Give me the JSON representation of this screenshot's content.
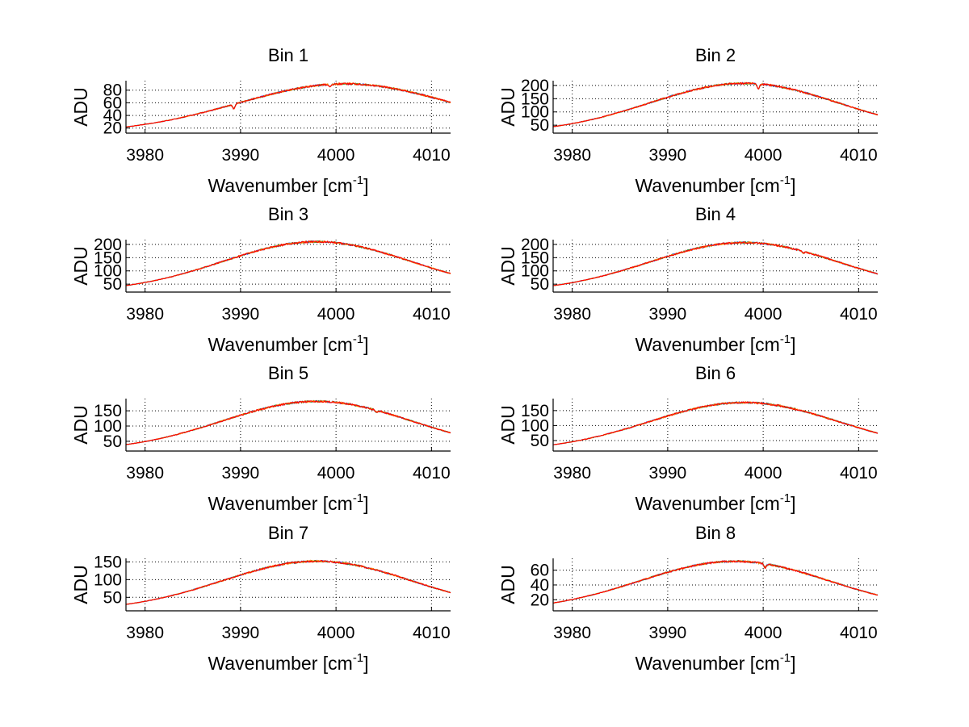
{
  "figure": {
    "x_tick_labels": [
      "3980",
      "3990",
      "4000",
      "4010"
    ],
    "xlabel_main": "Wavenumber [cm",
    "xlabel_sup": "-1",
    "xlabel_end": "]",
    "ylabel": "ADU",
    "xlim": [
      3978,
      4012
    ],
    "colors": {
      "series": [
        "#1f3fff",
        "#2e8b2e",
        "#ff8c00",
        "#ff0000"
      ],
      "grid": "#000000"
    }
  },
  "chart_data": [
    {
      "type": "line",
      "title": "Bin 1",
      "xlabel": "Wavenumber [cm-1]",
      "ylabel": "ADU",
      "ylim": [
        12,
        95
      ],
      "yticks": [
        20,
        40,
        60,
        80
      ],
      "peak_x": 4001,
      "width": 16,
      "base": 12,
      "amp": 78,
      "dips": [
        [
          3989.3,
          7
        ],
        [
          3999.4,
          3
        ]
      ]
    },
    {
      "type": "line",
      "title": "Bin 2",
      "xlabel": "Wavenumber [cm-1]",
      "ylabel": "ADU",
      "ylim": [
        20,
        218
      ],
      "yticks": [
        50,
        100,
        150,
        200
      ],
      "peak_x": 3998,
      "width": 14,
      "base": 20,
      "amp": 188,
      "dips": [
        [
          3999.5,
          18
        ]
      ]
    },
    {
      "type": "line",
      "title": "Bin 3",
      "xlabel": "Wavenumber [cm-1]",
      "ylabel": "ADU",
      "ylim": [
        20,
        218
      ],
      "yticks": [
        50,
        100,
        150,
        200
      ],
      "peak_x": 3998,
      "width": 14,
      "base": 20,
      "amp": 190,
      "dips": []
    },
    {
      "type": "line",
      "title": "Bin 4",
      "xlabel": "Wavenumber [cm-1]",
      "ylabel": "ADU",
      "ylim": [
        20,
        218
      ],
      "yticks": [
        50,
        100,
        150,
        200
      ],
      "peak_x": 3998,
      "width": 14,
      "base": 20,
      "amp": 187,
      "dips": [
        [
          4004.2,
          6
        ]
      ]
    },
    {
      "type": "line",
      "title": "Bin 5",
      "xlabel": "Wavenumber [cm-1]",
      "ylabel": "ADU",
      "ylim": [
        18,
        190
      ],
      "yticks": [
        50,
        100,
        150
      ],
      "peak_x": 3998,
      "width": 14,
      "base": 18,
      "amp": 163,
      "dips": [
        [
          4004.2,
          6
        ]
      ]
    },
    {
      "type": "line",
      "title": "Bin 6",
      "xlabel": "Wavenumber [cm-1]",
      "ylabel": "ADU",
      "ylim": [
        15,
        190
      ],
      "yticks": [
        50,
        100,
        150
      ],
      "peak_x": 3998,
      "width": 14,
      "base": 15,
      "amp": 162,
      "dips": []
    },
    {
      "type": "line",
      "title": "Bin 7",
      "xlabel": "Wavenumber [cm-1]",
      "ylabel": "ADU",
      "ylim": [
        12,
        160
      ],
      "yticks": [
        50,
        100,
        150
      ],
      "peak_x": 3998,
      "width": 14,
      "base": 12,
      "amp": 140,
      "dips": []
    },
    {
      "type": "line",
      "title": "Bin 8",
      "xlabel": "Wavenumber [cm-1]",
      "ylabel": "ADU",
      "ylim": [
        5,
        76
      ],
      "yticks": [
        20,
        40,
        60
      ],
      "peak_x": 3997,
      "width": 14,
      "base": 5,
      "amp": 67,
      "dips": [
        [
          4000.2,
          5
        ]
      ]
    }
  ]
}
